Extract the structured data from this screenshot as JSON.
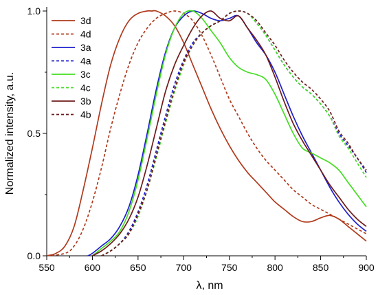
{
  "chart_data": {
    "type": "line",
    "xlabel": "λ, nm",
    "ylabel": "Normalized intensity, a.u.",
    "xlim": [
      550,
      900
    ],
    "ylim": [
      0,
      1
    ],
    "x_ticks": [
      550,
      600,
      650,
      700,
      750,
      800,
      850,
      900
    ],
    "x_tick_labels": [
      "550",
      "600",
      "650",
      "700",
      "750",
      "800",
      "850",
      "900"
    ],
    "y_ticks": [
      0,
      0.5,
      1
    ],
    "y_tick_labels": [
      "0.0",
      "0.5",
      "1.0"
    ],
    "grid": false,
    "legend_position": "top-left",
    "series": [
      {
        "name": "3d",
        "color": "#b03a1c",
        "dash": "solid",
        "x": [
          550,
          560,
          570,
          580,
          590,
          600,
          610,
          620,
          630,
          640,
          650,
          660,
          665,
          670,
          680,
          690,
          700,
          710,
          720,
          730,
          740,
          750,
          760,
          770,
          780,
          790,
          800,
          810,
          820,
          830,
          840,
          850,
          860,
          870,
          880,
          890,
          900
        ],
        "y": [
          0.0,
          0.01,
          0.04,
          0.12,
          0.27,
          0.44,
          0.62,
          0.78,
          0.89,
          0.96,
          0.99,
          1.0,
          1.0,
          1.0,
          0.98,
          0.94,
          0.87,
          0.78,
          0.69,
          0.6,
          0.52,
          0.45,
          0.39,
          0.34,
          0.3,
          0.26,
          0.22,
          0.19,
          0.16,
          0.14,
          0.14,
          0.155,
          0.165,
          0.15,
          0.12,
          0.09,
          0.06
        ]
      },
      {
        "name": "4d",
        "color": "#b03a1c",
        "dash": "dashed",
        "x": [
          550,
          570,
          580,
          590,
          600,
          610,
          620,
          630,
          640,
          650,
          660,
          670,
          680,
          690,
          700,
          710,
          720,
          730,
          740,
          750,
          760,
          770,
          780,
          790,
          800,
          810,
          820,
          830,
          840,
          850,
          860,
          870,
          880,
          890,
          900
        ],
        "y": [
          0.0,
          0.01,
          0.04,
          0.11,
          0.22,
          0.36,
          0.52,
          0.66,
          0.78,
          0.87,
          0.93,
          0.97,
          0.99,
          1.0,
          0.99,
          0.96,
          0.9,
          0.82,
          0.73,
          0.64,
          0.57,
          0.5,
          0.44,
          0.39,
          0.35,
          0.31,
          0.27,
          0.24,
          0.21,
          0.19,
          0.17,
          0.15,
          0.13,
          0.11,
          0.09
        ]
      },
      {
        "name": "3a",
        "color": "#1f1fcc",
        "dash": "solid",
        "x": [
          595,
          600,
          610,
          620,
          630,
          640,
          650,
          660,
          670,
          680,
          690,
          700,
          710,
          720,
          730,
          740,
          750,
          760,
          770,
          780,
          790,
          800,
          810,
          820,
          830,
          840,
          850,
          860,
          870,
          880,
          890,
          900
        ],
        "y": [
          0.0,
          0.01,
          0.04,
          0.07,
          0.12,
          0.2,
          0.33,
          0.5,
          0.68,
          0.83,
          0.93,
          0.98,
          1.0,
          0.99,
          0.97,
          0.96,
          0.97,
          0.98,
          0.93,
          0.87,
          0.82,
          0.75,
          0.66,
          0.57,
          0.49,
          0.42,
          0.35,
          0.28,
          0.22,
          0.17,
          0.13,
          0.1
        ]
      },
      {
        "name": "4a",
        "color": "#1f1fcc",
        "dash": "dashed",
        "x": [
          610,
          620,
          630,
          640,
          650,
          660,
          670,
          680,
          690,
          700,
          710,
          720,
          730,
          740,
          750,
          760,
          770,
          780,
          790,
          800,
          810,
          820,
          830,
          840,
          850,
          860,
          870,
          880,
          890,
          900
        ],
        "y": [
          0.0,
          0.02,
          0.05,
          0.1,
          0.18,
          0.29,
          0.43,
          0.57,
          0.7,
          0.8,
          0.87,
          0.91,
          0.94,
          0.96,
          0.99,
          1.0,
          0.99,
          0.95,
          0.9,
          0.84,
          0.78,
          0.73,
          0.69,
          0.66,
          0.62,
          0.57,
          0.5,
          0.45,
          0.4,
          0.34
        ]
      },
      {
        "name": "3c",
        "color": "#44dd22",
        "dash": "solid",
        "x": [
          600,
          610,
          620,
          630,
          640,
          650,
          660,
          670,
          680,
          690,
          700,
          710,
          720,
          730,
          740,
          750,
          760,
          770,
          780,
          790,
          800,
          810,
          820,
          830,
          840,
          850,
          860,
          870,
          880,
          890,
          900
        ],
        "y": [
          0.0,
          0.03,
          0.06,
          0.1,
          0.18,
          0.31,
          0.48,
          0.66,
          0.82,
          0.93,
          0.99,
          1.0,
          0.97,
          0.92,
          0.87,
          0.81,
          0.77,
          0.75,
          0.74,
          0.72,
          0.66,
          0.58,
          0.5,
          0.44,
          0.42,
          0.4,
          0.38,
          0.35,
          0.3,
          0.25,
          0.2
        ]
      },
      {
        "name": "4c",
        "color": "#44dd22",
        "dash": "dashed",
        "x": [
          610,
          620,
          630,
          640,
          650,
          660,
          670,
          680,
          690,
          700,
          710,
          720,
          730,
          740,
          750,
          760,
          770,
          780,
          790,
          800,
          810,
          820,
          830,
          840,
          850,
          860,
          870,
          880,
          890,
          900
        ],
        "y": [
          0.0,
          0.02,
          0.05,
          0.09,
          0.16,
          0.27,
          0.4,
          0.54,
          0.67,
          0.78,
          0.86,
          0.91,
          0.94,
          0.96,
          0.99,
          1.0,
          0.99,
          0.95,
          0.9,
          0.84,
          0.78,
          0.73,
          0.69,
          0.66,
          0.62,
          0.57,
          0.49,
          0.44,
          0.38,
          0.32
        ]
      },
      {
        "name": "3b",
        "color": "#6e1a1a",
        "dash": "solid",
        "x": [
          600,
          610,
          620,
          630,
          640,
          650,
          660,
          670,
          680,
          690,
          700,
          710,
          720,
          730,
          740,
          750,
          760,
          770,
          780,
          790,
          800,
          810,
          820,
          830,
          840,
          850,
          860,
          870,
          880,
          890,
          900
        ],
        "y": [
          0.0,
          0.02,
          0.05,
          0.09,
          0.15,
          0.24,
          0.37,
          0.52,
          0.67,
          0.78,
          0.86,
          0.93,
          0.98,
          1.0,
          0.97,
          0.96,
          0.98,
          0.93,
          0.88,
          0.82,
          0.73,
          0.63,
          0.54,
          0.47,
          0.41,
          0.35,
          0.29,
          0.24,
          0.19,
          0.15,
          0.12
        ]
      },
      {
        "name": "4b",
        "color": "#6e1a1a",
        "dash": "dashed",
        "x": [
          610,
          620,
          630,
          640,
          650,
          660,
          670,
          680,
          690,
          700,
          710,
          720,
          730,
          740,
          750,
          760,
          770,
          780,
          790,
          800,
          810,
          820,
          830,
          840,
          850,
          860,
          870,
          880,
          890,
          900
        ],
        "y": [
          0.0,
          0.02,
          0.05,
          0.09,
          0.17,
          0.27,
          0.41,
          0.55,
          0.68,
          0.79,
          0.86,
          0.91,
          0.94,
          0.96,
          0.99,
          1.0,
          0.99,
          0.96,
          0.91,
          0.86,
          0.8,
          0.75,
          0.71,
          0.68,
          0.64,
          0.59,
          0.51,
          0.46,
          0.4,
          0.35
        ]
      }
    ]
  }
}
